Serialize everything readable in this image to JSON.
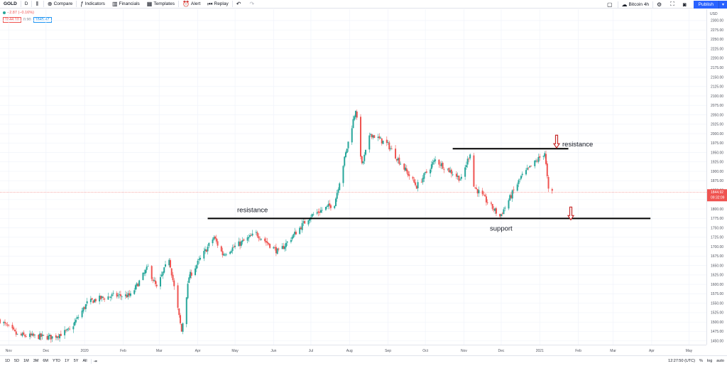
{
  "toolbar": {
    "symbol": "GOLD",
    "interval": "D",
    "compare": "Compare",
    "indicators": "Indicators",
    "financials": "Financials",
    "templates": "Templates",
    "alert": "Alert",
    "replay": "Replay",
    "layout_name": "Bitcoin 4h",
    "publish": "Publish"
  },
  "legend": {
    "change": "−2.87 (−0.16%)",
    "bid": "1844.10",
    "spread": "0.90",
    "ask": "1845.47"
  },
  "price_axis": {
    "currency": "USD",
    "last_price": "1844.92",
    "countdown": "09:32:09"
  },
  "time_ranges": [
    "1D",
    "5D",
    "1M",
    "3M",
    "6M",
    "YTD",
    "1Y",
    "5Y",
    "All"
  ],
  "status": {
    "clock": "12:27:50 (UTC)",
    "percent": "%",
    "log": "log",
    "auto": "auto"
  },
  "annotations": {
    "resistance_upper": "resistance",
    "resistance_lower": "resistance",
    "support": "support"
  },
  "colors": {
    "up": "#26a69a",
    "down": "#ef5350",
    "line": "#000000",
    "arrow": "#c62828",
    "accent": "#2962ff"
  },
  "icons": {
    "interval_divider": "bar-style-icon",
    "compare": "plus-circle-icon",
    "indicators": "function-icon",
    "financials": "financials-icon",
    "templates": "templates-icon",
    "alert": "alarm-clock-icon",
    "replay": "replay-icon",
    "undo": "undo-icon",
    "redo": "redo-icon"
  },
  "chart_data": {
    "type": "candlestick",
    "instrument": "GOLD",
    "interval": "D",
    "ylim": [
      1440,
      2330
    ],
    "y_ticks": [
      1450,
      1475,
      1500,
      1525,
      1550,
      1575,
      1600,
      1625,
      1650,
      1675,
      1700,
      1725,
      1750,
      1775,
      1800,
      1825,
      1850,
      1875,
      1900,
      1925,
      1950,
      1975,
      2000,
      2025,
      2050,
      2075,
      2100,
      2125,
      2150,
      2175,
      2200,
      2225,
      2250,
      2275,
      2300
    ],
    "x_labels": [
      "Nov",
      "Dec",
      "2020",
      "Feb",
      "Mar",
      "Apr",
      "May",
      "Jun",
      "Jul",
      "Aug",
      "Sep",
      "Oct",
      "Nov",
      "Dec",
      "2021",
      "Feb",
      "Mar",
      "Apr",
      "May"
    ],
    "x_range": [
      "2019-10-25",
      "2021-05-15"
    ],
    "series_close": [
      [
        "2019-10-25",
        1505
      ],
      [
        "2019-11-08",
        1465
      ],
      [
        "2019-11-22",
        1462
      ],
      [
        "2019-12-06",
        1460
      ],
      [
        "2019-12-20",
        1478
      ],
      [
        "2020-01-03",
        1550
      ],
      [
        "2020-01-10",
        1560
      ],
      [
        "2020-01-24",
        1570
      ],
      [
        "2020-02-07",
        1570
      ],
      [
        "2020-02-21",
        1645
      ],
      [
        "2020-02-28",
        1590
      ],
      [
        "2020-03-09",
        1670
      ],
      [
        "2020-03-19",
        1475
      ],
      [
        "2020-03-25",
        1620
      ],
      [
        "2020-04-14",
        1725
      ],
      [
        "2020-04-21",
        1680
      ],
      [
        "2020-05-18",
        1735
      ],
      [
        "2020-06-05",
        1685
      ],
      [
        "2020-06-30",
        1780
      ],
      [
        "2020-07-20",
        1815
      ],
      [
        "2020-08-06",
        2065
      ],
      [
        "2020-08-11",
        1915
      ],
      [
        "2020-08-18",
        2000
      ],
      [
        "2020-09-01",
        1970
      ],
      [
        "2020-09-24",
        1860
      ],
      [
        "2020-10-09",
        1930
      ],
      [
        "2020-10-30",
        1878
      ],
      [
        "2020-11-06",
        1950
      ],
      [
        "2020-11-09",
        1860
      ],
      [
        "2020-11-30",
        1780
      ],
      [
        "2020-12-17",
        1885
      ],
      [
        "2021-01-05",
        1950
      ],
      [
        "2021-01-08",
        1848
      ],
      [
        "2021-01-11",
        1844.92
      ]
    ],
    "horizontal_lines": [
      {
        "label": "resistance",
        "price": 1775,
        "x_from": "2020-04-09",
        "x_to": "2021-03-31"
      },
      {
        "label": "resistance",
        "price": 1960,
        "x_from": "2020-10-23",
        "x_to": "2021-01-24"
      }
    ],
    "annotations": [
      "resistance",
      "resistance",
      "support"
    ],
    "last_price": 1844.92
  }
}
